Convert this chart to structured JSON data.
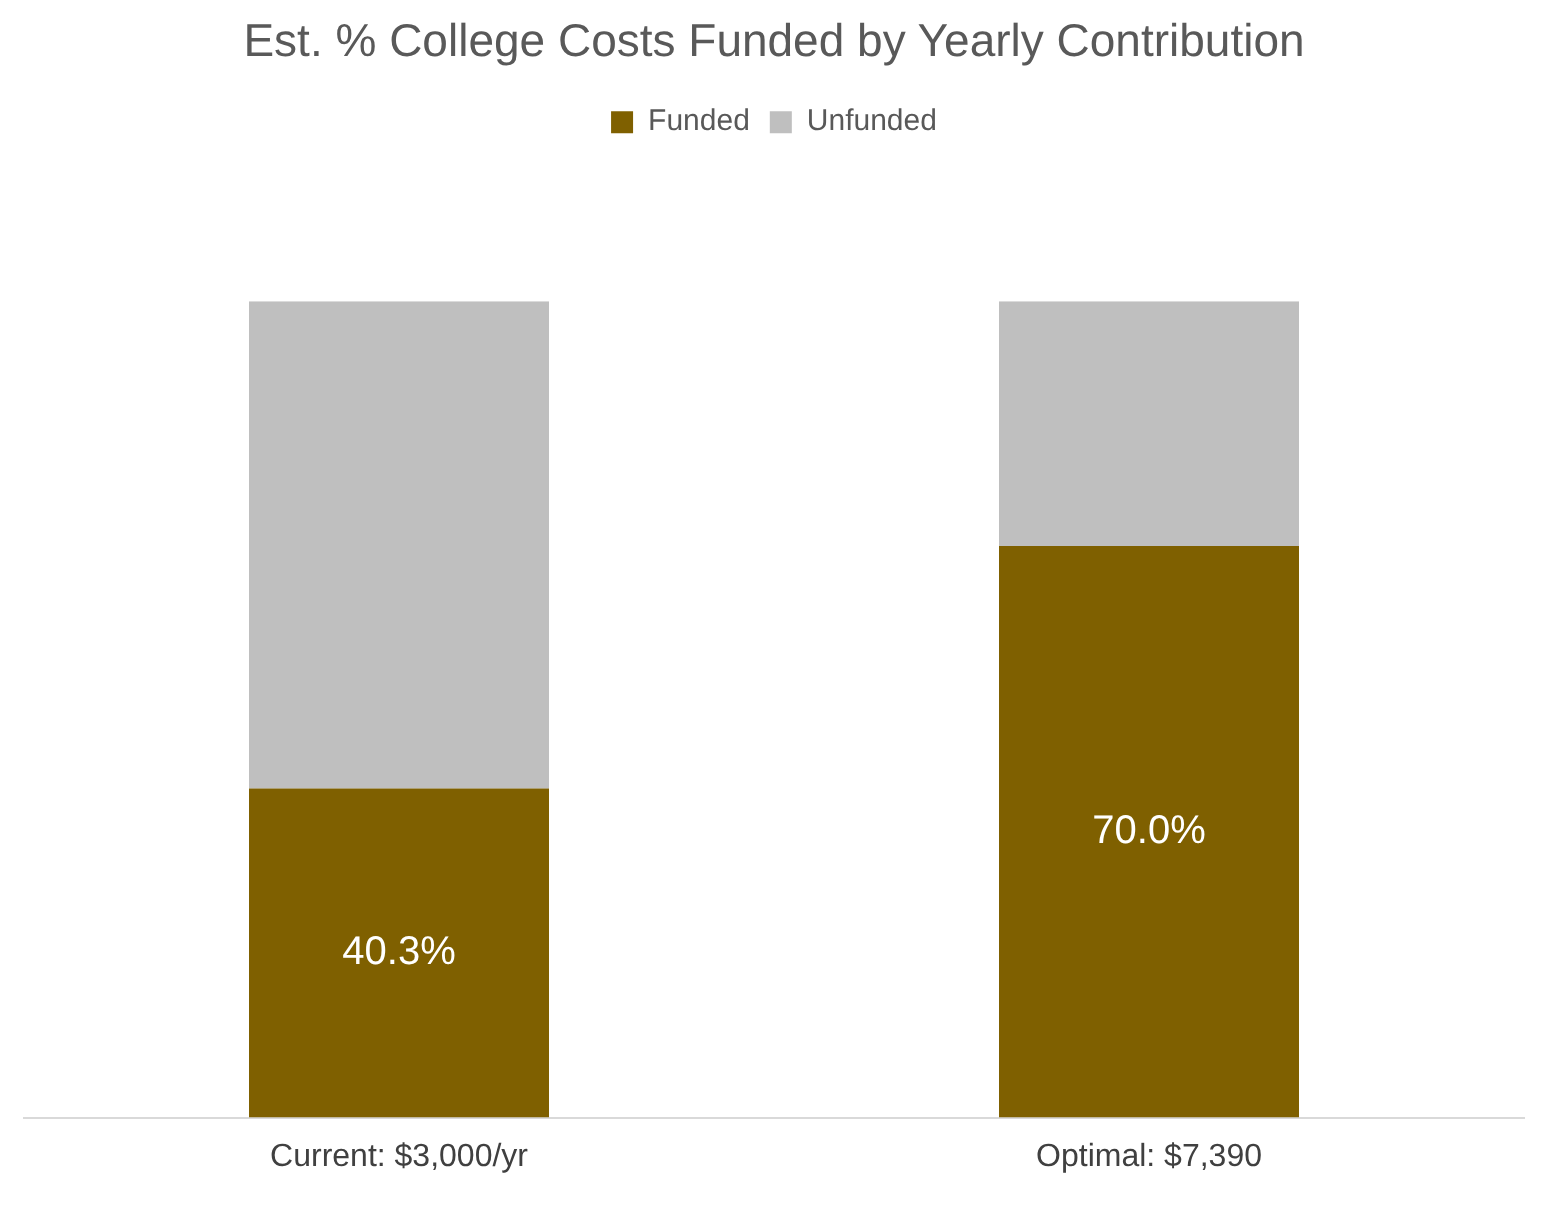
{
  "chart_data": {
    "type": "bar",
    "title": "Est. % College Costs Funded by Yearly Contribution",
    "categories": [
      "Current: $3,000/yr",
      "Optimal: $7,390"
    ],
    "stacked": true,
    "ylim": [
      0,
      100
    ],
    "tick_labels": "x",
    "legend": "top",
    "grid": false,
    "series": [
      {
        "name": "Funded",
        "color": "#7f6000",
        "values": [
          40.3,
          70.0
        ],
        "value_labels": [
          "40.3%",
          "70.0%"
        ]
      },
      {
        "name": "Unfunded",
        "color": "#bfbfbf",
        "values": [
          59.7,
          30.0
        ]
      }
    ]
  }
}
